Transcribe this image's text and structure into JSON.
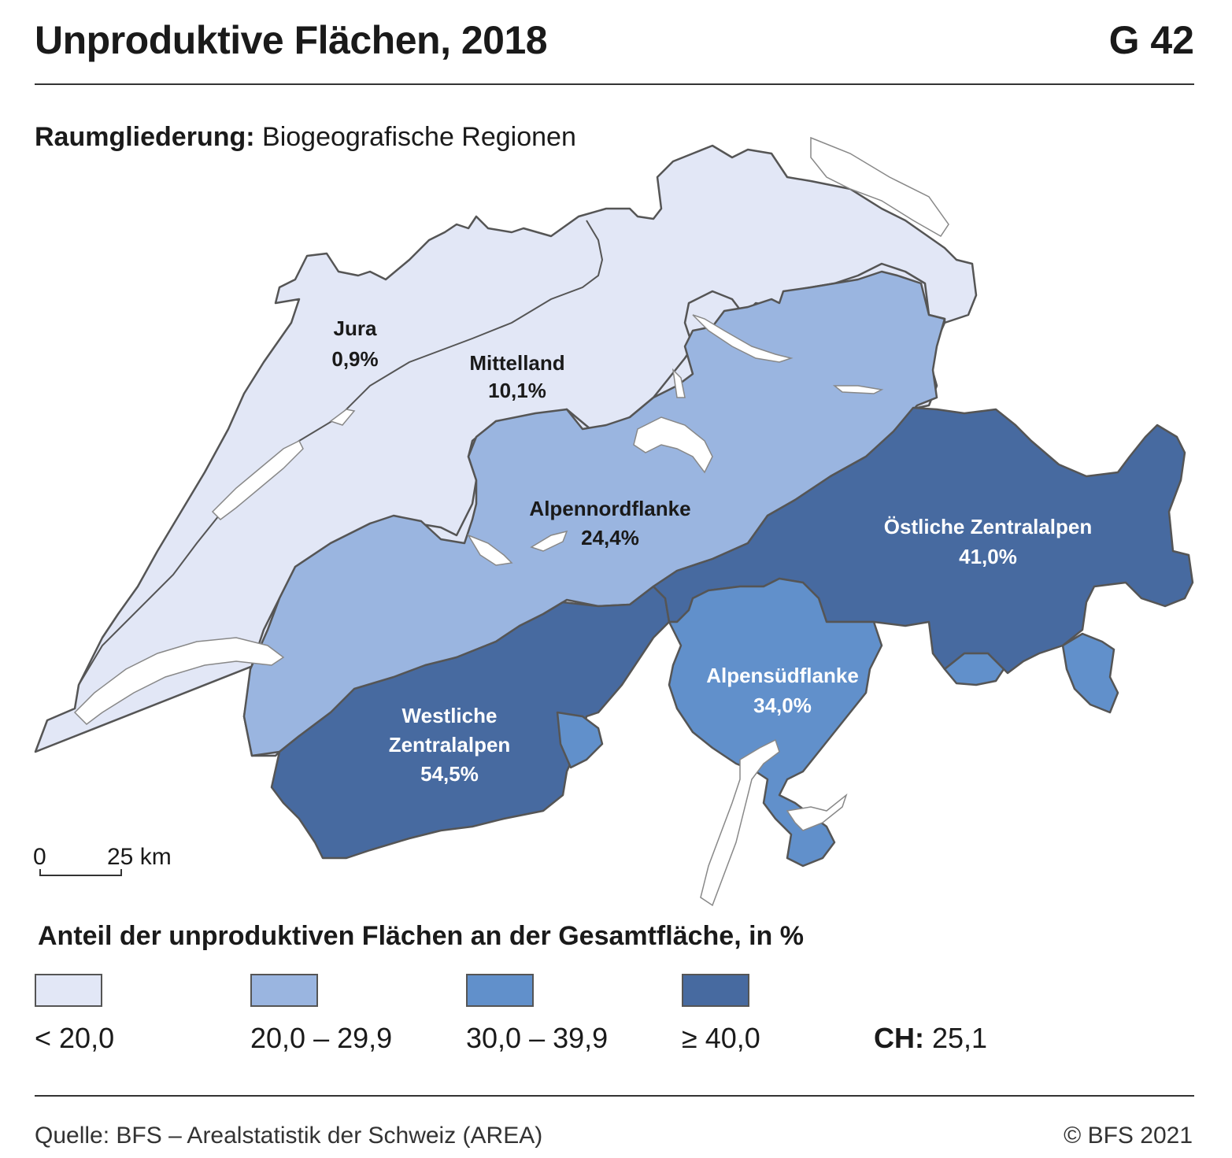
{
  "header": {
    "title": "Unproduktive Flächen, 2018",
    "code": "G 42"
  },
  "subtitle": {
    "label": "Raumgliederung:",
    "value": "Biogeografische Regionen"
  },
  "regions": [
    {
      "name": "Jura",
      "value": "0,9%",
      "class": "< 20,0"
    },
    {
      "name": "Mittelland",
      "value": "10,1%",
      "class": "< 20,0"
    },
    {
      "name": "Alpennordflanke",
      "value": "24,4%",
      "class": "20,0 – 29,9"
    },
    {
      "name": "Östliche Zentralalpen",
      "value": "41,0%",
      "class": "≥ 40,0"
    },
    {
      "name": "Alpensüdflanke",
      "value": "34,0%",
      "class": "30,0 – 39,9"
    },
    {
      "name": "Westliche",
      "name2": "Zentralalpen",
      "value": "54,5%",
      "class": "≥ 40,0"
    }
  ],
  "scale": {
    "start": "0",
    "end": "25 km"
  },
  "legend": {
    "title": "Anteil der unproduktiven Flächen an der Gesamtfläche, in %",
    "items": [
      {
        "label": "< 20,0",
        "color": "#e2e7f6"
      },
      {
        "label": "20,0 – 29,9",
        "color": "#9ab5e0"
      },
      {
        "label": "30,0 – 39,9",
        "color": "#6190cb"
      },
      {
        "label": "≥ 40,0",
        "color": "#476aa0"
      }
    ],
    "ch_label": "CH:",
    "ch_value": "25,1"
  },
  "footer": {
    "source": "Quelle: BFS –  Arealstatistik der Schweiz (AREA)",
    "copyright": "© BFS 2021"
  }
}
